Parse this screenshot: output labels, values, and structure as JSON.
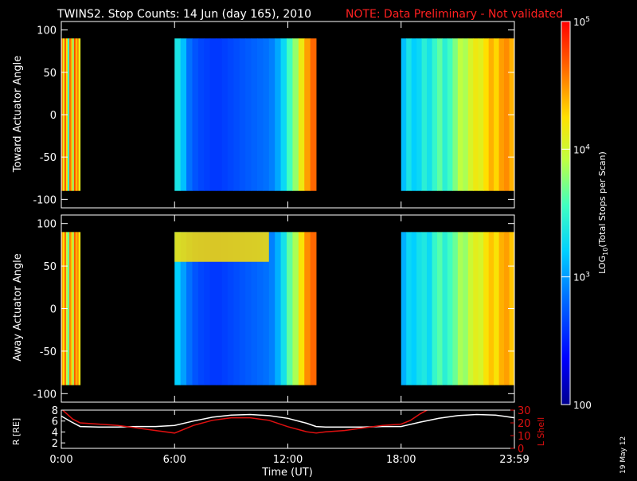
{
  "header": {
    "title": "TWINS2. Stop Counts: 14 Jun (day 165), 2010",
    "note": "NOTE: Data Preliminary - Not validated"
  },
  "side_date": "19 May 12",
  "colors": {
    "background": "#000000",
    "text": "#ffffff",
    "note": "#ff2020",
    "lshell": "#e01010"
  },
  "chart_data": [
    {
      "type": "heatmap",
      "name": "toward",
      "ylabel": "Toward Actuator Angle",
      "ylim": [
        -110,
        110
      ],
      "yticks": [
        100,
        50,
        0,
        -50,
        -100
      ],
      "ytick_labels": [
        "100",
        "50",
        "0",
        "-50",
        "-100"
      ],
      "xlim": [
        0,
        24
      ],
      "xticks": [
        0,
        6,
        12,
        18,
        24
      ],
      "angle_range": [
        -90,
        90
      ],
      "data_gaps": [
        [
          1.0,
          6.0
        ],
        [
          13.5,
          18.0
        ]
      ],
      "segments": [
        {
          "start": 0.0,
          "end": 1.0,
          "values": [
            0.85,
            0.7,
            0.9,
            0.75,
            0.5,
            0.88,
            0.8,
            0.6,
            0.92,
            0.78,
            0.85,
            0.7
          ]
        },
        {
          "start": 6.0,
          "end": 13.5,
          "values": [
            0.45,
            0.38,
            0.28,
            0.24,
            0.22,
            0.21,
            0.2,
            0.2,
            0.21,
            0.22,
            0.23,
            0.24,
            0.25,
            0.26,
            0.27,
            0.28,
            0.3,
            0.35,
            0.42,
            0.52,
            0.6,
            0.72,
            0.82,
            0.88
          ]
        },
        {
          "start": 18.0,
          "end": 24.0,
          "values": [
            0.38,
            0.45,
            0.4,
            0.42,
            0.48,
            0.44,
            0.5,
            0.55,
            0.48,
            0.52,
            0.58,
            0.64,
            0.62,
            0.68,
            0.72,
            0.7,
            0.75,
            0.8,
            0.76,
            0.82,
            0.84,
            0.8
          ]
        }
      ]
    },
    {
      "type": "heatmap",
      "name": "away",
      "ylabel": "Away Actuator Angle",
      "ylim": [
        -110,
        110
      ],
      "yticks": [
        100,
        50,
        0,
        -50,
        -100
      ],
      "ytick_labels": [
        "100",
        "50",
        "0",
        "-50",
        "-100"
      ],
      "xlim": [
        0,
        24
      ],
      "xticks": [
        0,
        6,
        12,
        18,
        24
      ],
      "angle_range": [
        -90,
        90
      ],
      "data_gaps": [
        [
          1.0,
          6.0
        ],
        [
          13.5,
          18.0
        ]
      ],
      "segments": [
        {
          "start": 0.0,
          "end": 1.0,
          "values": [
            0.82,
            0.75,
            0.88,
            0.65,
            0.55,
            0.85,
            0.78,
            0.62,
            0.9,
            0.8,
            0.84,
            0.72
          ]
        },
        {
          "start": 6.0,
          "end": 13.5,
          "values": [
            0.4,
            0.34,
            0.28,
            0.24,
            0.22,
            0.21,
            0.2,
            0.2,
            0.21,
            0.22,
            0.23,
            0.24,
            0.25,
            0.26,
            0.27,
            0.28,
            0.3,
            0.36,
            0.44,
            0.55,
            0.62,
            0.74,
            0.84,
            0.88
          ]
        },
        {
          "start": 18.0,
          "end": 24.0,
          "values": [
            0.36,
            0.42,
            0.4,
            0.44,
            0.46,
            0.42,
            0.5,
            0.54,
            0.48,
            0.52,
            0.56,
            0.62,
            0.6,
            0.66,
            0.7,
            0.68,
            0.74,
            0.78,
            0.74,
            0.8,
            0.82,
            0.78
          ]
        }
      ],
      "high_band": {
        "start": 6.0,
        "end": 11.0,
        "angle_range": [
          55,
          90
        ],
        "level": 0.75
      }
    },
    {
      "type": "line",
      "name": "orbit",
      "ylabel_left": "R [RE]",
      "ylabel_right": "L Shell",
      "ylim_left": [
        1,
        8
      ],
      "yticks_left": [
        8,
        6,
        4,
        2
      ],
      "ylim_right": [
        0,
        30
      ],
      "yticks_right": [
        30,
        20,
        10,
        0
      ],
      "xlim": [
        0,
        24
      ],
      "xticks": [
        0,
        6,
        12,
        18,
        24
      ],
      "xtick_labels": [
        "0:00",
        "6:00",
        "12:00",
        "18:00",
        "23:59"
      ],
      "xlabel": "Time (UT)",
      "series": [
        {
          "axis": "left",
          "color": "#ffffff",
          "x": [
            0,
            0.5,
            1.0,
            2,
            3,
            4,
            5,
            6,
            7,
            8,
            9,
            10,
            11,
            12,
            13,
            13.5,
            14,
            15,
            16,
            17,
            18,
            19,
            20,
            21,
            22,
            23,
            24
          ],
          "y": [
            6.9,
            5.9,
            5.0,
            4.9,
            4.9,
            5.0,
            5.0,
            5.2,
            6.0,
            6.7,
            7.1,
            7.2,
            7.0,
            6.5,
            5.6,
            5.0,
            4.9,
            4.9,
            4.9,
            5.0,
            5.0,
            5.8,
            6.5,
            7.0,
            7.2,
            7.1,
            6.6
          ]
        },
        {
          "axis": "right",
          "color": "#e01010",
          "x": [
            0,
            0.3,
            0.6,
            1.0,
            2,
            3,
            4,
            5,
            6,
            7,
            8,
            9,
            10,
            11,
            12,
            13,
            13.5,
            14,
            15,
            16,
            17,
            18,
            18.5,
            19,
            19.5
          ],
          "y": [
            31,
            27,
            23,
            20,
            19,
            18,
            16,
            14,
            12,
            18,
            22,
            24,
            24,
            22,
            17,
            13,
            12,
            13,
            14,
            16,
            18,
            19,
            22,
            27,
            31
          ]
        }
      ]
    }
  ],
  "colorbar": {
    "label": "LOG10(Total Stops per Scan)",
    "label_main": "LOG",
    "label_sub": "10",
    "label_rest": "(Total Stops per Scan)",
    "range": [
      100,
      100000
    ],
    "ticks": [
      {
        "value": 100000,
        "base": "10",
        "exp": "5"
      },
      {
        "value": 10000,
        "base": "10",
        "exp": "4"
      },
      {
        "value": 1000,
        "base": "10",
        "exp": "3"
      },
      {
        "value": 100,
        "base": "100",
        "exp": ""
      }
    ]
  }
}
